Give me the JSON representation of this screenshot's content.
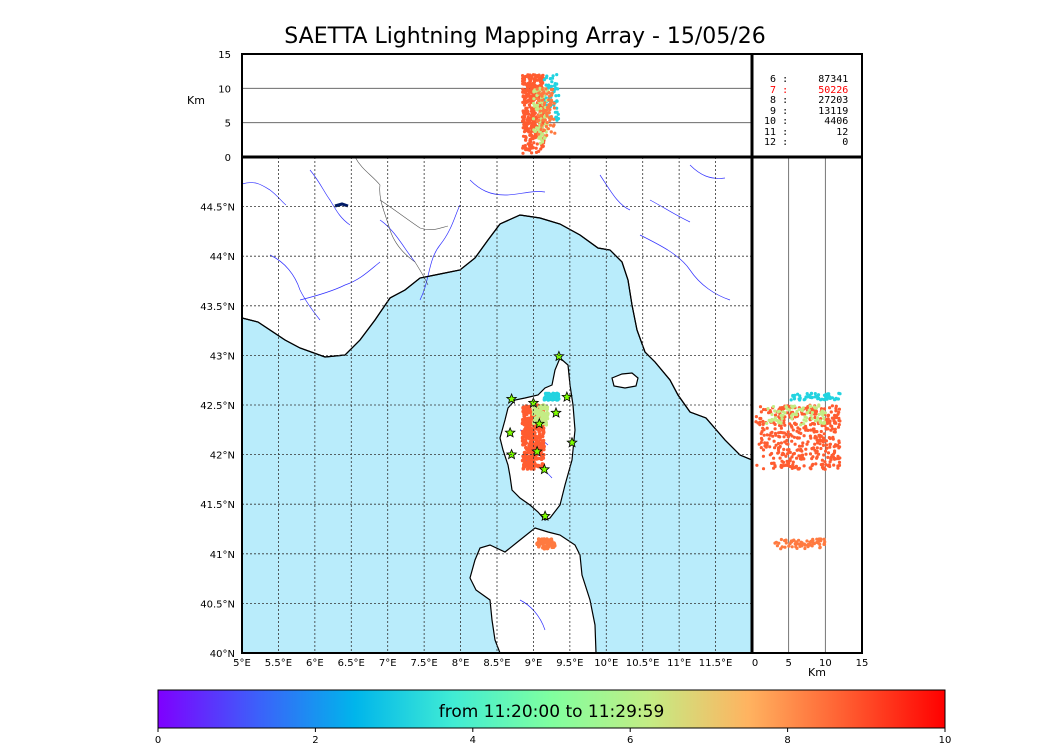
{
  "title": "SAETTA Lightning Mapping Array - 15/05/26",
  "colorbar": {
    "label": "from 11:20:00 to 11:29:59",
    "ticks": [
      "0",
      "2",
      "4",
      "6",
      "8",
      "10"
    ],
    "colors": [
      "#7f00ff",
      "#3d5ffa",
      "#00b5eb",
      "#40ecd4",
      "#80ff9f",
      "#c4ec84",
      "#ffb360",
      "#ff5c30",
      "#ff0000"
    ]
  },
  "stats": [
    {
      "minute": "6",
      "sep": ":",
      "count": "87341",
      "color": "#000000"
    },
    {
      "minute": "7",
      "sep": ":",
      "count": "50226",
      "color": "#ff0000"
    },
    {
      "minute": "8",
      "sep": ":",
      "count": "27203",
      "color": "#000000"
    },
    {
      "minute": "9",
      "sep": ":",
      "count": "13119",
      "color": "#000000"
    },
    {
      "minute": "10",
      "sep": ":",
      "count": "4406",
      "color": "#000000"
    },
    {
      "minute": "11",
      "sep": ":",
      "count": "12",
      "color": "#000000"
    },
    {
      "minute": "12",
      "sep": ":",
      "count": "0",
      "color": "#000000"
    }
  ],
  "colors": {
    "sea": "#b9ecfb",
    "land": "#ffffff",
    "river": "#3333ff",
    "border": "#000000",
    "station": "#7fff00"
  },
  "chart_data": {
    "type": "scatter",
    "title": "SAETTA Lightning Mapping Array - 15/05/26",
    "map": {
      "lon_range": [
        5,
        12
      ],
      "lat_range": [
        40,
        45
      ],
      "x_ticks": [
        "5°E",
        "5.5°E",
        "6°E",
        "6.5°E",
        "7°E",
        "7.5°E",
        "8°E",
        "8.5°E",
        "9°E",
        "9.5°E",
        "10°E",
        "10.5°E",
        "11°E",
        "11.5°E"
      ],
      "y_ticks": [
        "40°N",
        "40.5°N",
        "41°N",
        "41.5°N",
        "42°N",
        "42.5°N",
        "43°N",
        "43.5°N",
        "44°N",
        "44.5°N"
      ],
      "grid": "dotted"
    },
    "altitude_lon_panel": {
      "ylabel": "Km",
      "y_range": [
        0,
        15
      ],
      "y_ticks": [
        "0",
        "5",
        "10",
        "15"
      ]
    },
    "altitude_lat_panel": {
      "xlabel": "Km",
      "x_range": [
        0,
        15
      ],
      "x_ticks": [
        "0",
        "5",
        "10",
        "15"
      ]
    },
    "stations": [
      {
        "lon": 9.35,
        "lat": 42.99
      },
      {
        "lon": 8.7,
        "lat": 42.56
      },
      {
        "lon": 9.0,
        "lat": 42.52
      },
      {
        "lon": 9.46,
        "lat": 42.58
      },
      {
        "lon": 9.31,
        "lat": 42.42
      },
      {
        "lon": 9.08,
        "lat": 42.31
      },
      {
        "lon": 8.68,
        "lat": 42.22
      },
      {
        "lon": 9.53,
        "lat": 42.12
      },
      {
        "lon": 9.05,
        "lat": 42.03
      },
      {
        "lon": 8.7,
        "lat": 42.0
      },
      {
        "lon": 9.15,
        "lat": 41.85
      },
      {
        "lon": 9.16,
        "lat": 41.38
      }
    ],
    "source_clusters": [
      {
        "lon": [
          8.85,
          9.15
        ],
        "lat": [
          41.85,
          42.5
        ],
        "alt": [
          0.5,
          12
        ],
        "color": "#ff5c30",
        "n": 420
      },
      {
        "lon": [
          9.15,
          9.35
        ],
        "lat": [
          42.55,
          42.62
        ],
        "alt": [
          5,
          12
        ],
        "color": "#22d3e0",
        "n": 60
      },
      {
        "lon": [
          9.0,
          9.2
        ],
        "lat": [
          42.3,
          42.5
        ],
        "alt": [
          2,
          10
        ],
        "color": "#c4ec84",
        "n": 80
      },
      {
        "lon": [
          9.05,
          9.3
        ],
        "lat": [
          41.05,
          41.15
        ],
        "alt": [
          3,
          10
        ],
        "color": "#ff7a40",
        "n": 70
      }
    ]
  }
}
